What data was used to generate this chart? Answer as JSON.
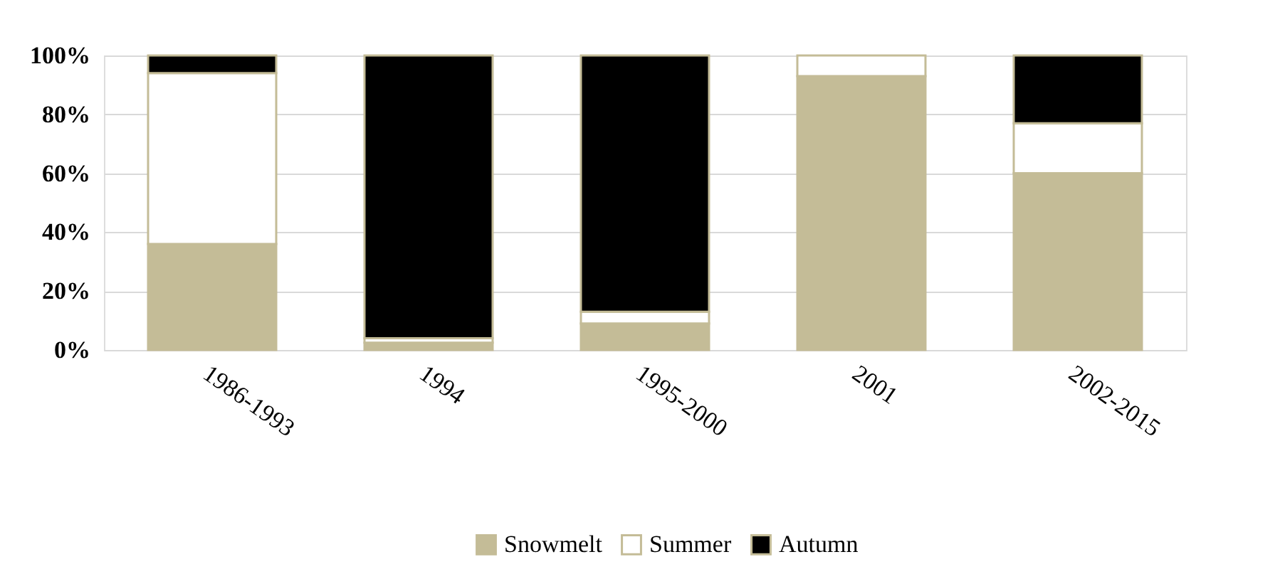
{
  "chart_data": {
    "type": "bar",
    "stacked": true,
    "categories": [
      "1986-1993",
      "1994",
      "1995-2000",
      "2001",
      "2002-2015"
    ],
    "series": [
      {
        "name": "Snowmelt",
        "color": "#c4bc97",
        "values": [
          36,
          2.5,
          9,
          93,
          60
        ]
      },
      {
        "name": "Summer",
        "color": "#ffffff",
        "values": [
          58,
          1.5,
          4,
          7,
          17
        ]
      },
      {
        "name": "Autumn",
        "color": "#000000",
        "values": [
          6,
          96,
          87,
          null,
          23
        ]
      }
    ],
    "ylim": [
      0,
      100
    ],
    "yticks": [
      {
        "value": 0,
        "label": "0%"
      },
      {
        "value": 20,
        "label": "20%"
      },
      {
        "value": 40,
        "label": "40%"
      },
      {
        "value": 60,
        "label": "60%"
      },
      {
        "value": 80,
        "label": "80%"
      },
      {
        "value": 100,
        "label": "100%"
      }
    ],
    "grid": "y",
    "legend": "bottom"
  }
}
